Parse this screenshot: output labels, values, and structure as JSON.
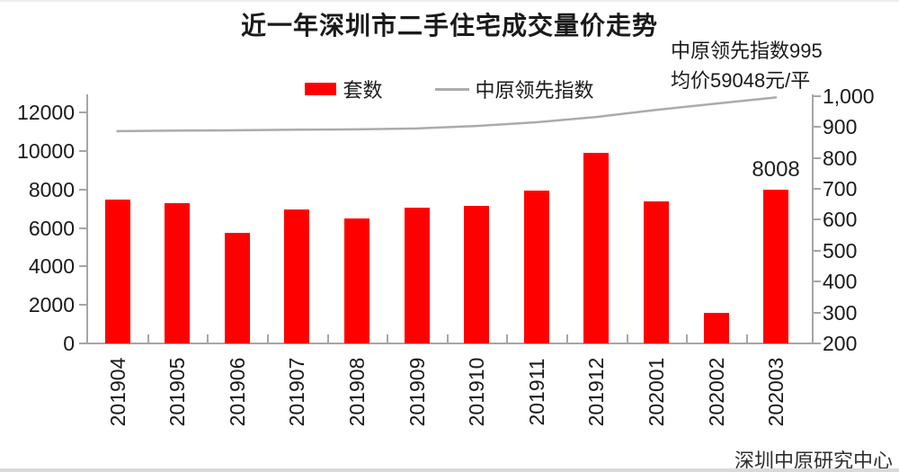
{
  "page": {
    "title": "近一年深圳市二手住宅成交量价走势",
    "annotation_line1": "中原领先指数995",
    "annotation_line2": "均价59048元/平",
    "source": "深圳中原研究中心"
  },
  "legend": {
    "bars_label": "套数",
    "line_label": "中原领先指数"
  },
  "colors": {
    "bar": "#fe0000",
    "line": "#ababab",
    "axis": "#a6a6a6",
    "text": "#1a1a1a"
  },
  "chart_data": {
    "type": "bar+line",
    "title": "近一年深圳市二手住宅成交量价走势",
    "categories": [
      "201904",
      "201905",
      "201906",
      "201907",
      "201908",
      "201909",
      "201910",
      "201911",
      "201912",
      "202001",
      "202002",
      "202003"
    ],
    "series": [
      {
        "name": "套数",
        "type": "bar",
        "axis": "left",
        "values": [
          7500,
          7300,
          5750,
          6950,
          6500,
          7050,
          7150,
          7950,
          9900,
          7400,
          1600,
          8008
        ]
      },
      {
        "name": "中原领先指数",
        "type": "line",
        "axis": "right",
        "values": [
          886,
          888,
          889,
          891,
          892,
          895,
          903,
          915,
          932,
          955,
          975,
          995
        ]
      }
    ],
    "left_axis": {
      "min": 0,
      "max": 12000,
      "step": 2000,
      "tick_values": [
        0,
        2000,
        4000,
        6000,
        8000,
        10000,
        12000
      ],
      "tick_labels": [
        "0",
        "2000",
        "4000",
        "6000",
        "8000",
        "10000",
        "12000"
      ]
    },
    "right_axis": {
      "min": 200,
      "max": 1000,
      "step": 100,
      "tick_values": [
        200,
        300,
        400,
        500,
        600,
        700,
        800,
        900,
        1000
      ],
      "tick_labels": [
        "200",
        "300",
        "400",
        "500",
        "600",
        "700",
        "800",
        "900",
        "1,000"
      ]
    },
    "bar_labels": [
      {
        "category": "202003",
        "text": "8008"
      }
    ],
    "legend_position": "top-center",
    "grid": false
  }
}
